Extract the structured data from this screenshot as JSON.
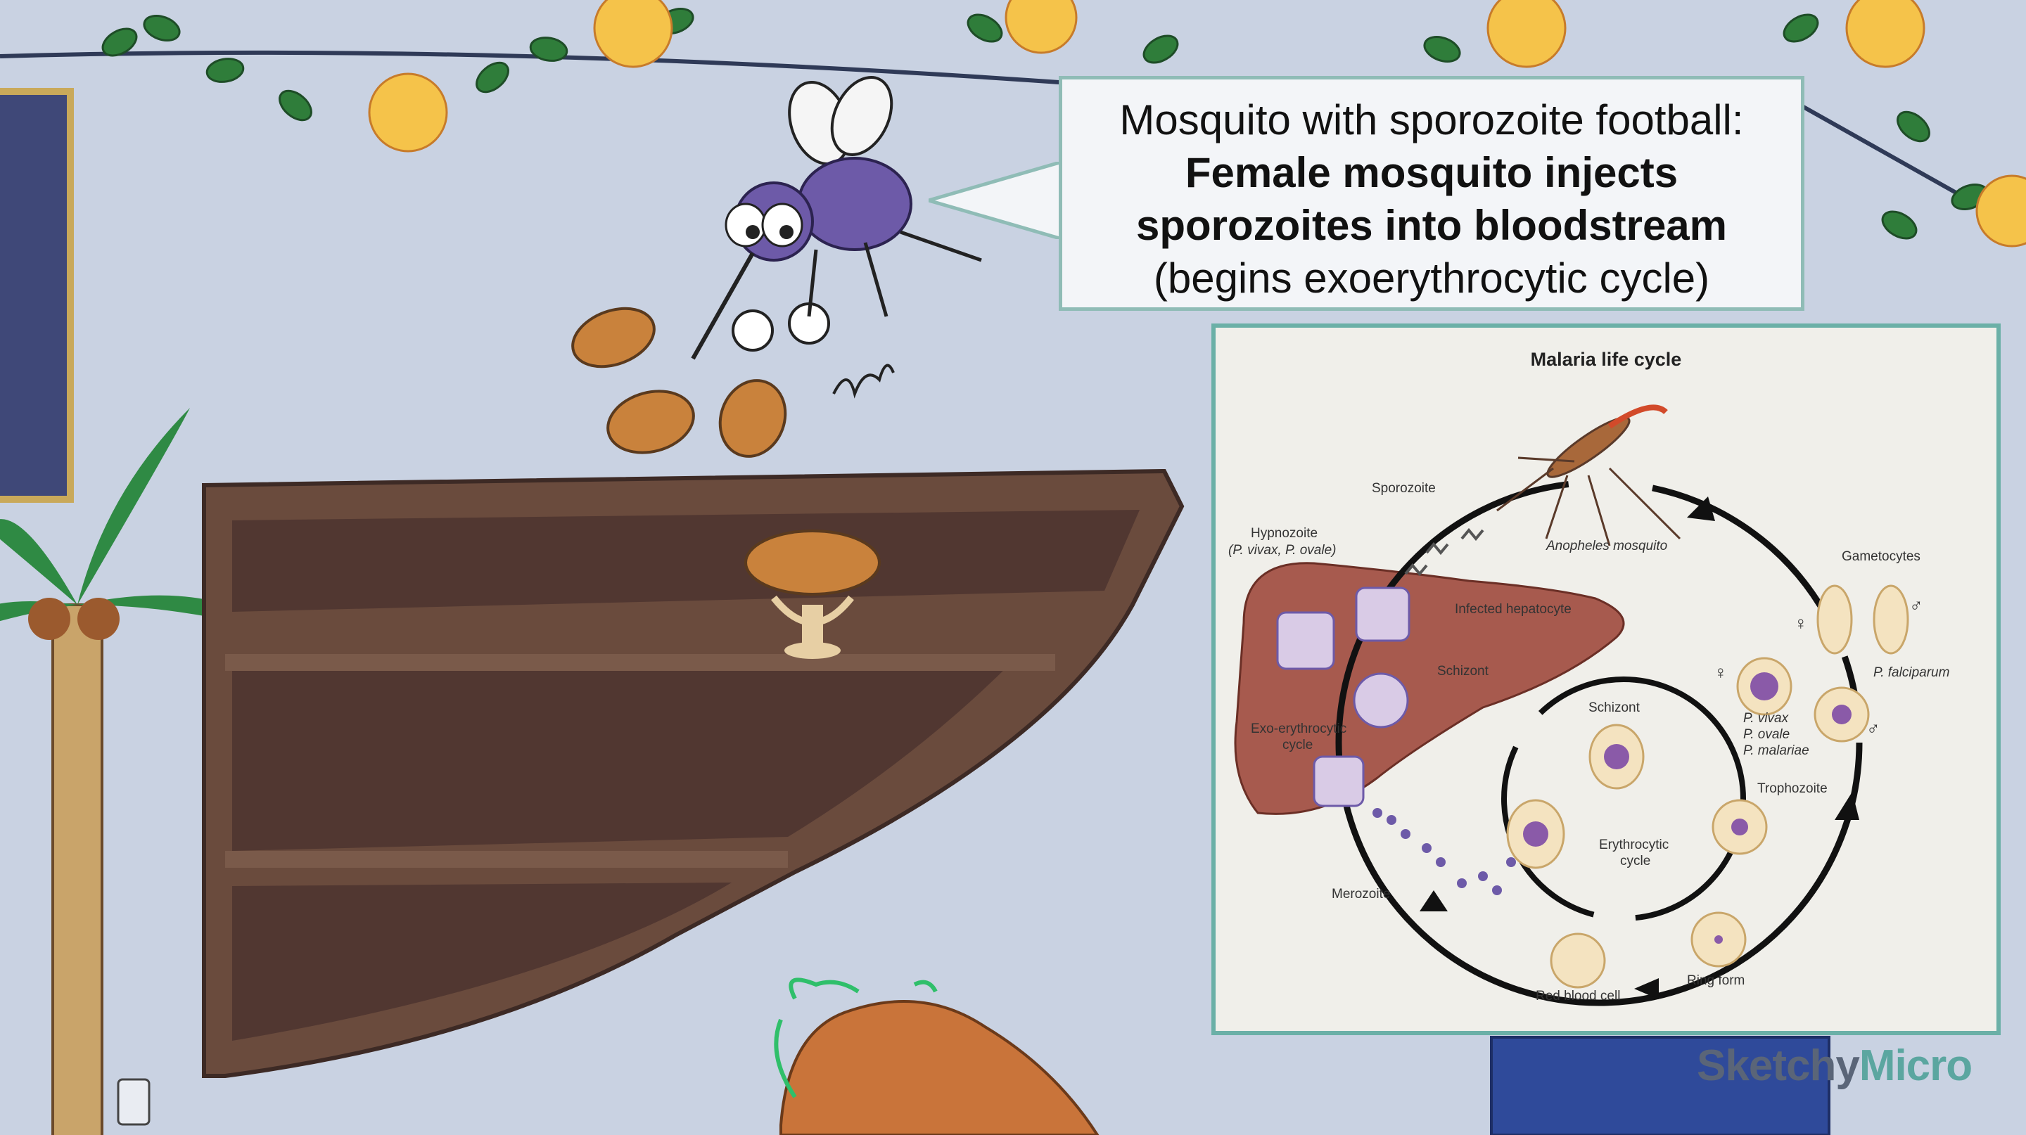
{
  "callout": {
    "line1": "Mosquito with sporozoite football:",
    "line2": "Female mosquito injects",
    "line3": "sporozoites into bloodstream",
    "line4": "(begins exoerythrocytic cycle)"
  },
  "diagram": {
    "title": "Malaria life cycle",
    "labels": {
      "sporozoite": "Sporozoite",
      "anopheles": "Anopheles mosquito",
      "gametocytes": "Gametocytes",
      "hypnozoite": "Hypnozoite",
      "hypnozoite_species": "(P. vivax, P. ovale)",
      "infected_hepatocyte": "Infected hepatocyte",
      "schizont_liver": "Schizont",
      "exo_cycle_1": "Exo-erythrocytic",
      "exo_cycle_2": "cycle",
      "p_falciparum": "P. falciparum",
      "p_vivax": "P. vivax",
      "p_ovale": "P. ovale",
      "p_malariae": "P. malariae",
      "schizont_blood": "Schizont",
      "trophozoite": "Trophozoite",
      "erythro_cycle_1": "Erythrocytic",
      "erythro_cycle_2": "cycle",
      "merozoite": "Merozoite",
      "red_blood_cell": "Red blood cell",
      "ring_form": "Ring form",
      "female_symbol": "♀",
      "male_symbol": "♂"
    }
  },
  "brand": {
    "part1": "Sketchy",
    "part2": "Micro"
  },
  "colors": {
    "wall": "#c9d2e2",
    "shelf": "#5e4038",
    "panel_border": "#6bb0a7",
    "mosquito": "#6d5aa8",
    "liver": "#a75a4e"
  }
}
